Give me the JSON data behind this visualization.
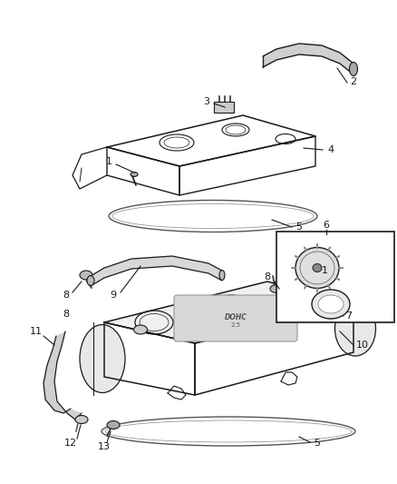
{
  "background_color": "#ffffff",
  "line_color": "#1a1a1a",
  "fig_width": 4.38,
  "fig_height": 5.33,
  "dpi": 100,
  "parts": {
    "tube2": {
      "color": "#555555",
      "lw": 2.5
    },
    "cover": {
      "color": "#333333",
      "lw": 1.0
    },
    "gasket": {
      "color": "#555555",
      "lw": 0.8
    }
  }
}
